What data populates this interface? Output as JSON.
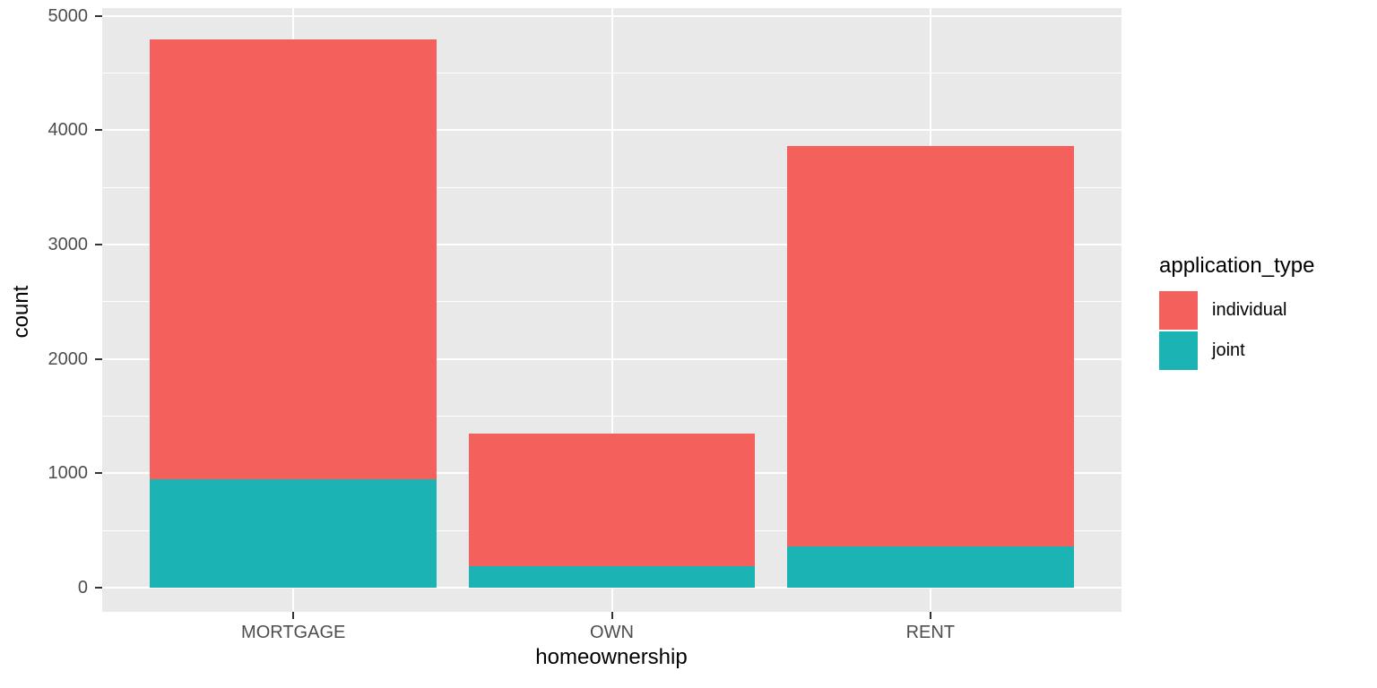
{
  "legend": {
    "title": "application_type",
    "items": [
      {
        "label": "individual",
        "color": "#F4605B"
      },
      {
        "label": "joint",
        "color": "#1BB3B4"
      }
    ]
  },
  "chart_data": {
    "type": "bar",
    "stacked": true,
    "title": "",
    "xlabel": "homeownership",
    "ylabel": "count",
    "categories": [
      "MORTGAGE",
      "OWN",
      "RENT"
    ],
    "series": [
      {
        "name": "individual",
        "color": "#F4605B",
        "values": [
          3840,
          1165,
          3500
        ]
      },
      {
        "name": "joint",
        "color": "#1BB3B4",
        "values": [
          950,
          185,
          360
        ]
      }
    ],
    "totals": [
      4790,
      1350,
      3860
    ],
    "y_ticks": [
      0,
      1000,
      2000,
      3000,
      4000,
      5000
    ],
    "y_minor_ticks": [
      500,
      1500,
      2500,
      3500,
      4500
    ],
    "ylim": [
      0,
      5000
    ],
    "grid": true,
    "legend_position": "right",
    "bar_width_fraction": 0.9,
    "colors": {
      "panel_bg": "#E9E9E9",
      "grid": "#FFFFFF",
      "tick_text": "#4D4D4D",
      "axis_title": "#000000",
      "tick_mark": "#333333",
      "background": "#FFFFFF"
    }
  }
}
